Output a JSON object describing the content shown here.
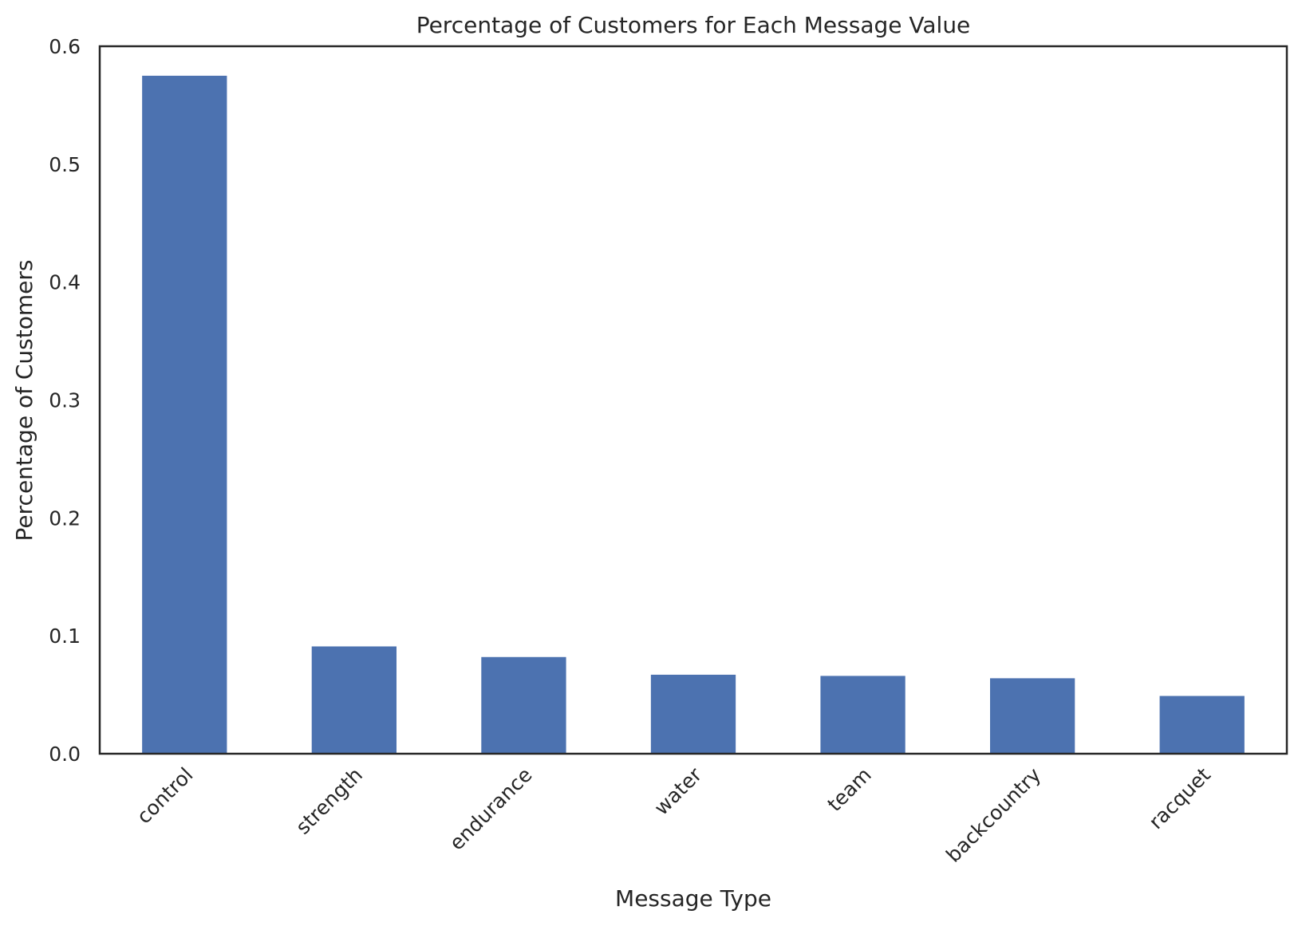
{
  "chart_data": {
    "type": "bar",
    "title": "Percentage of Customers for Each Message Value",
    "xlabel": "Message Type",
    "ylabel": "Percentage of Customers",
    "categories": [
      "control",
      "strength",
      "endurance",
      "water",
      "team",
      "backcountry",
      "racquet"
    ],
    "values": [
      0.575,
      0.091,
      0.082,
      0.067,
      0.066,
      0.064,
      0.049
    ],
    "ylim": [
      0,
      0.6
    ],
    "yticks": [
      "0.0",
      "0.1",
      "0.2",
      "0.3",
      "0.4",
      "0.5",
      "0.6"
    ],
    "grid": false,
    "legend": "none",
    "bar_color": "#4c72b0",
    "axis_color": "#262626"
  }
}
